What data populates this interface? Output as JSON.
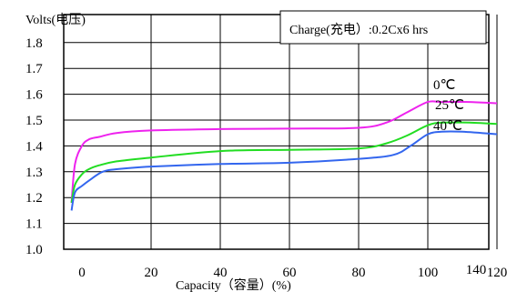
{
  "chart_data": {
    "type": "line",
    "title": "Charge(充电）:0.2Cx6 hrs",
    "ylabel": "Volts(电压)",
    "xlabel": "Capacity（容量）(%)",
    "xlim": [
      0,
      140
    ],
    "ylim": [
      1.0,
      1.85
    ],
    "yticks": [
      "1.0",
      "1.1",
      "1.2",
      "1.3",
      "1.4",
      "1.5",
      "1.6",
      "1.7",
      "1.8"
    ],
    "xticks": [
      "0",
      "20",
      "40",
      "60",
      "80",
      "100",
      "120",
      "140"
    ],
    "grid": true,
    "series": [
      {
        "name": "0℃",
        "color": "#ee22ee",
        "x": [
          -3,
          -2,
          0,
          2,
          5,
          10,
          20,
          40,
          60,
          80,
          88,
          94,
          100,
          104,
          112,
          120
        ],
        "y": [
          1.18,
          1.33,
          1.4,
          1.425,
          1.435,
          1.45,
          1.46,
          1.465,
          1.467,
          1.47,
          1.49,
          1.53,
          1.57,
          1.57,
          1.57,
          1.565
        ]
      },
      {
        "name": "25℃",
        "color": "#22dd22",
        "x": [
          -3,
          -2,
          0,
          2,
          5,
          10,
          20,
          40,
          60,
          80,
          88,
          94,
          100,
          104,
          112,
          120
        ],
        "y": [
          1.18,
          1.25,
          1.29,
          1.31,
          1.325,
          1.34,
          1.355,
          1.38,
          1.385,
          1.39,
          1.41,
          1.44,
          1.48,
          1.49,
          1.49,
          1.485
        ]
      },
      {
        "name": "40℃",
        "color": "#3366ee",
        "x": [
          -3,
          -2,
          0,
          3,
          6,
          10,
          20,
          40,
          60,
          80,
          90,
          95,
          100,
          104,
          110,
          120
        ],
        "y": [
          1.15,
          1.22,
          1.245,
          1.275,
          1.3,
          1.31,
          1.32,
          1.33,
          1.335,
          1.35,
          1.365,
          1.4,
          1.445,
          1.455,
          1.455,
          1.445
        ]
      }
    ]
  }
}
